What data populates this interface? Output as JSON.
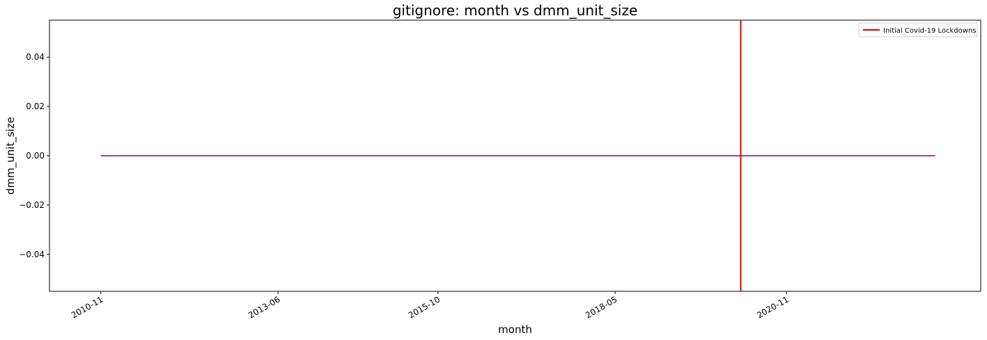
{
  "chart_data": {
    "type": "line",
    "title": "gitignore: month vs dmm_unit_size",
    "xlabel": "month",
    "ylabel": "dmm_unit_size",
    "x_ticks": [
      "2010-11",
      "2013-06",
      "2015-10",
      "2018-05",
      "2020-11"
    ],
    "y_ticks": [
      "0.04",
      "0.02",
      "0.00",
      "−0.02",
      "−0.04"
    ],
    "y_tick_values": [
      0.04,
      0.02,
      0.0,
      -0.02,
      -0.04
    ],
    "ylim": [
      -0.055,
      0.055
    ],
    "xlim": [
      "2010-02",
      "2023-09"
    ],
    "series": [
      {
        "color": "#800080",
        "x": [
          "2010-11",
          "2023-01"
        ],
        "y": [
          0.0,
          0.0
        ]
      }
    ],
    "vline": {
      "x": "2020-03",
      "color": "#d40000",
      "label": "Initial Covid-19 Lockdowns"
    },
    "legend": {
      "position": "top-right",
      "entries": [
        "Initial Covid-19 Lockdowns"
      ]
    },
    "grid": false
  }
}
